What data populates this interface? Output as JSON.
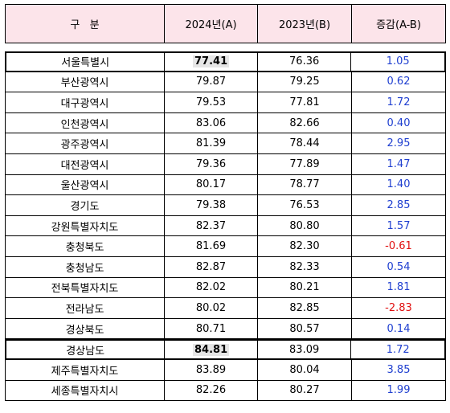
{
  "header": {
    "region": "구   분",
    "y2024": "2024년(A)",
    "y2023": "2023년(B)",
    "diff": "증감(A-B)"
  },
  "colors": {
    "header_bg": "#fce4ea",
    "positive": "#1f3fd0",
    "negative": "#e01010"
  },
  "rows": [
    {
      "region": "서울특별시",
      "y2024": "77.41",
      "y2023": "76.36",
      "diff": "1.05",
      "highlight": true
    },
    {
      "region": "부산광역시",
      "y2024": "79.87",
      "y2023": "79.25",
      "diff": "0.62"
    },
    {
      "region": "대구광역시",
      "y2024": "79.53",
      "y2023": "77.81",
      "diff": "1.72"
    },
    {
      "region": "인천광역시",
      "y2024": "83.06",
      "y2023": "82.66",
      "diff": "0.40"
    },
    {
      "region": "광주광역시",
      "y2024": "81.39",
      "y2023": "78.44",
      "diff": "2.95"
    },
    {
      "region": "대전광역시",
      "y2024": "79.36",
      "y2023": "77.89",
      "diff": "1.47"
    },
    {
      "region": "울산광역시",
      "y2024": "80.17",
      "y2023": "78.77",
      "diff": "1.40"
    },
    {
      "region": "경기도",
      "y2024": "79.38",
      "y2023": "76.53",
      "diff": "2.85"
    },
    {
      "region": "강원특별자치도",
      "y2024": "82.37",
      "y2023": "80.80",
      "diff": "1.57"
    },
    {
      "region": "충청북도",
      "y2024": "81.69",
      "y2023": "82.30",
      "diff": "-0.61"
    },
    {
      "region": "충청남도",
      "y2024": "82.87",
      "y2023": "82.33",
      "diff": "0.54"
    },
    {
      "region": "전북특별자치도",
      "y2024": "82.02",
      "y2023": "80.21",
      "diff": "1.81"
    },
    {
      "region": "전라남도",
      "y2024": "80.02",
      "y2023": "82.85",
      "diff": "-2.83"
    },
    {
      "region": "경상북도",
      "y2024": "80.71",
      "y2023": "80.57",
      "diff": "0.14"
    },
    {
      "region": "경상남도",
      "y2024": "84.81",
      "y2023": "83.09",
      "diff": "1.72",
      "highlight": true
    },
    {
      "region": "제주특별자치도",
      "y2024": "83.89",
      "y2023": "80.04",
      "diff": "3.85"
    },
    {
      "region": "세종특별자치시",
      "y2024": "82.26",
      "y2023": "80.27",
      "diff": "1.99"
    }
  ]
}
